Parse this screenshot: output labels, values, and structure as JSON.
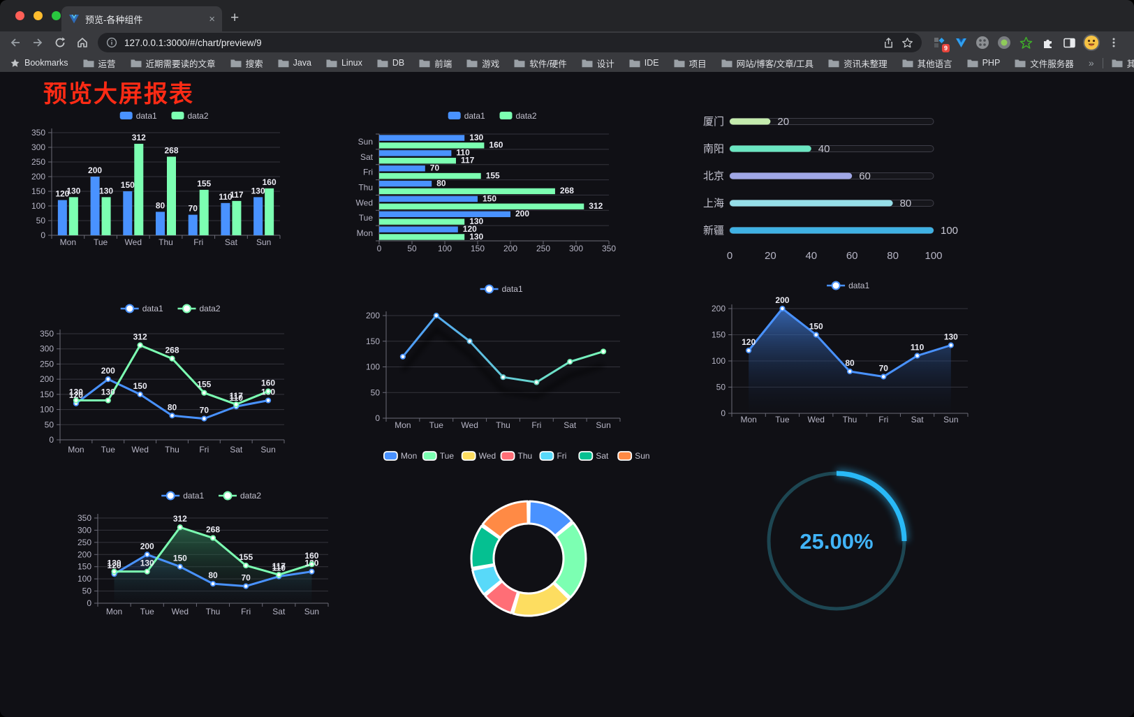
{
  "browser": {
    "tab_title": "预览-各种组件",
    "tab_close": "×",
    "new_tab": "+",
    "url": "127.0.0.1:3000/#/chart/preview/9",
    "extension_badge": "9",
    "bookmarks_root_label": "Bookmarks",
    "bookmark_folders": [
      "运营",
      "近期需要读的文章",
      "搜索",
      "Java",
      "Linux",
      "DB",
      "前端",
      "游戏",
      "软件/硬件",
      "设计",
      "IDE",
      "项目",
      "网站/博客/文章/工具",
      "资讯未整理",
      "其他语言",
      "PHP",
      "文件服务器"
    ],
    "bookmarks_overflow": "»",
    "other_bookmarks": "其他书签",
    "traffic_colors": [
      "#ff5f57",
      "#febc2e",
      "#29c73f"
    ]
  },
  "page": {
    "title": "预览大屏报表",
    "title_color": "#fd2b15"
  },
  "chart_data": [
    {
      "id": "bar-vertical",
      "type": "bar",
      "categories": [
        "Mon",
        "Tue",
        "Wed",
        "Thu",
        "Fri",
        "Sat",
        "Sun"
      ],
      "series": [
        {
          "name": "data1",
          "color": "#4992ff",
          "values": [
            120,
            200,
            150,
            80,
            70,
            110,
            130
          ]
        },
        {
          "name": "data2",
          "color": "#7cffb2",
          "values": [
            130,
            130,
            312,
            268,
            155,
            117,
            160
          ]
        }
      ],
      "ylim": [
        0,
        350
      ],
      "yticks": [
        0,
        50,
        100,
        150,
        200,
        250,
        300,
        350
      ],
      "legend_position": "top",
      "show_labels": true,
      "grid": true
    },
    {
      "id": "bar-horizontal",
      "type": "bar-horizontal",
      "categories": [
        "Mon",
        "Tue",
        "Wed",
        "Thu",
        "Fri",
        "Sat",
        "Sun"
      ],
      "series": [
        {
          "name": "data1",
          "color": "#4992ff",
          "values": [
            120,
            200,
            150,
            80,
            70,
            110,
            130
          ]
        },
        {
          "name": "data2",
          "color": "#7cffb2",
          "values": [
            130,
            130,
            312,
            268,
            155,
            117,
            160
          ]
        }
      ],
      "xlim": [
        0,
        350
      ],
      "xticks": [
        0,
        50,
        100,
        150,
        200,
        250,
        300,
        350
      ],
      "legend_position": "top",
      "show_labels": true,
      "grid": true
    },
    {
      "id": "progress-bars",
      "type": "progress",
      "max": 100,
      "xticks": [
        0,
        20,
        40,
        60,
        80,
        100
      ],
      "items": [
        {
          "label": "厦门",
          "value": 20,
          "color": "#c4ebad"
        },
        {
          "label": "南阳",
          "value": 40,
          "color": "#6be6c1"
        },
        {
          "label": "北京",
          "value": 60,
          "color": "#a0a7e6"
        },
        {
          "label": "上海",
          "value": 80,
          "color": "#96dee8"
        },
        {
          "label": "新疆",
          "value": 100,
          "color": "#3fb1e3"
        }
      ]
    },
    {
      "id": "line-two-series",
      "type": "line",
      "categories": [
        "Mon",
        "Tue",
        "Wed",
        "Thu",
        "Fri",
        "Sat",
        "Sun"
      ],
      "series": [
        {
          "name": "data1",
          "color": "#4992ff",
          "values": [
            120,
            200,
            150,
            80,
            70,
            110,
            130
          ]
        },
        {
          "name": "data2",
          "color": "#7cffb2",
          "values": [
            130,
            130,
            312,
            268,
            155,
            117,
            160
          ]
        }
      ],
      "ylim": [
        0,
        350
      ],
      "yticks": [
        0,
        50,
        100,
        150,
        200,
        250,
        300,
        350
      ],
      "legend_position": "top",
      "show_labels": true
    },
    {
      "id": "line-gradient",
      "type": "line",
      "categories": [
        "Mon",
        "Tue",
        "Wed",
        "Thu",
        "Fri",
        "Sat",
        "Sun"
      ],
      "series": [
        {
          "name": "data1",
          "color": "#4992ff",
          "gradient": [
            "#4992ff",
            "#7cffb2"
          ],
          "shadow": true,
          "values": [
            120,
            200,
            150,
            80,
            70,
            110,
            130
          ]
        }
      ],
      "ylim": [
        0,
        200
      ],
      "yticks": [
        0,
        50,
        100,
        150,
        200
      ],
      "legend_position": "top",
      "show_labels": false
    },
    {
      "id": "line-area",
      "type": "line",
      "categories": [
        "Mon",
        "Tue",
        "Wed",
        "Thu",
        "Fri",
        "Sat",
        "Sun"
      ],
      "series": [
        {
          "name": "data1",
          "color": "#4992ff",
          "area": [
            "rgba(62,120,210,0.8)",
            "rgba(15,25,45,0.04)"
          ],
          "values": [
            120,
            200,
            150,
            80,
            70,
            110,
            130
          ]
        }
      ],
      "ylim": [
        0,
        200
      ],
      "yticks": [
        0,
        50,
        100,
        150,
        200
      ],
      "legend_position": "top",
      "show_labels": true
    },
    {
      "id": "line-area-two",
      "type": "line",
      "categories": [
        "Mon",
        "Tue",
        "Wed",
        "Thu",
        "Fri",
        "Sat",
        "Sun"
      ],
      "series": [
        {
          "name": "data1",
          "color": "#4992ff",
          "area": [
            "rgba(62,120,210,0.75)",
            "rgba(15,25,45,0.04)"
          ],
          "values": [
            120,
            200,
            150,
            80,
            70,
            110,
            130
          ]
        },
        {
          "name": "data2",
          "color": "#7cffb2",
          "area": [
            "rgba(58,150,104,0.7)",
            "rgba(20,40,35,0.04)"
          ],
          "values": [
            130,
            130,
            312,
            268,
            155,
            117,
            160
          ]
        }
      ],
      "ylim": [
        0,
        350
      ],
      "yticks": [
        0,
        50,
        100,
        150,
        200,
        250,
        300,
        350
      ],
      "legend_position": "top",
      "show_labels": true
    },
    {
      "id": "donut",
      "type": "pie",
      "inner_radius_ratio": 0.61,
      "legend_position": "top",
      "slices": [
        {
          "label": "Mon",
          "value": 120,
          "color": "#4992ff"
        },
        {
          "label": "Tue",
          "value": 200,
          "color": "#7cffb2"
        },
        {
          "label": "Wed",
          "value": 150,
          "color": "#fddd60"
        },
        {
          "label": "Thu",
          "value": 80,
          "color": "#ff6e76"
        },
        {
          "label": "Fri",
          "value": 70,
          "color": "#58d9f9"
        },
        {
          "label": "Sat",
          "value": 110,
          "color": "#05c091"
        },
        {
          "label": "Sun",
          "value": 130,
          "color": "#ff8a45"
        }
      ]
    },
    {
      "id": "gauge",
      "type": "gauge",
      "value": 25,
      "label": "25.00%",
      "arc_color": "#29b9f7",
      "track_color": "#1d4652",
      "text_color": "#41b4f8"
    }
  ]
}
